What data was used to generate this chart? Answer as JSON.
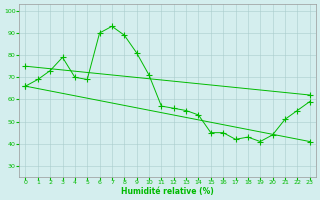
{
  "xlabel": "Humidité relative (%)",
  "background_color": "#d4eeee",
  "grid_color": "#aacccc",
  "line_color": "#00bb00",
  "xlim": [
    -0.5,
    23.5
  ],
  "ylim": [
    25,
    103
  ],
  "yticks": [
    30,
    40,
    50,
    60,
    70,
    80,
    90,
    100
  ],
  "xticks": [
    0,
    1,
    2,
    3,
    4,
    5,
    6,
    7,
    8,
    9,
    10,
    11,
    12,
    13,
    14,
    15,
    16,
    17,
    18,
    19,
    20,
    21,
    22,
    23
  ],
  "line1_x": [
    0,
    1,
    2,
    3,
    4,
    5,
    6,
    7,
    8,
    9,
    10,
    11,
    12,
    13,
    14,
    15,
    16,
    17,
    18,
    19,
    20,
    21,
    22,
    23
  ],
  "line1_y": [
    66,
    69,
    73,
    79,
    70,
    69,
    90,
    93,
    89,
    81,
    71,
    57,
    56,
    55,
    53,
    45,
    45,
    42,
    43,
    41,
    44,
    51,
    55,
    59
  ],
  "line2_x": [
    0,
    23
  ],
  "line2_y": [
    75,
    62
  ],
  "line3_x": [
    0,
    23
  ],
  "line3_y": [
    66,
    41
  ]
}
